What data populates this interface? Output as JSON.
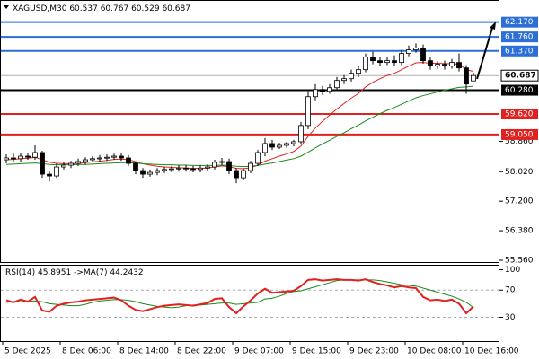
{
  "chart_data": {
    "type": "candlestick",
    "symbol": "XAGUSD,M30",
    "open": [
      58.35,
      58.4,
      58.38,
      58.45,
      58.42,
      58.55,
      57.95,
      57.9,
      58.15,
      58.2,
      58.25,
      58.3,
      58.35,
      58.38,
      58.4,
      58.42,
      58.45,
      58.4,
      58.25,
      58.05,
      57.95,
      58.0,
      58.05,
      58.08,
      58.1,
      58.12,
      58.1,
      58.08,
      58.12,
      58.15,
      58.28,
      58.3,
      58.05,
      57.85,
      58.05,
      58.25,
      58.55,
      58.8,
      58.7,
      58.75,
      58.8,
      58.85,
      59.3,
      60.1,
      60.3,
      60.25,
      60.35,
      60.55,
      60.6,
      60.75,
      60.85,
      61.2,
      61.1,
      61.05,
      61.1,
      61.05,
      61.3,
      61.4,
      61.45,
      61.1,
      60.95,
      61.0,
      60.95,
      61.05,
      60.9,
      60.537
    ],
    "high": [
      58.5,
      58.52,
      58.55,
      58.55,
      58.75,
      58.6,
      58.05,
      58.25,
      58.3,
      58.32,
      58.38,
      58.42,
      58.45,
      58.48,
      58.5,
      58.52,
      58.55,
      58.48,
      58.3,
      58.12,
      58.08,
      58.12,
      58.15,
      58.18,
      58.2,
      58.2,
      58.18,
      58.2,
      58.22,
      58.35,
      58.4,
      58.38,
      58.12,
      58.12,
      58.32,
      58.62,
      58.95,
      58.9,
      58.82,
      58.85,
      58.9,
      59.4,
      60.25,
      60.45,
      60.4,
      60.45,
      60.65,
      60.7,
      60.85,
      60.95,
      61.3,
      61.35,
      61.2,
      61.2,
      61.25,
      61.4,
      61.52,
      61.58,
      61.55,
      61.2,
      61.08,
      61.1,
      61.15,
      61.3,
      60.98,
      60.767
    ],
    "low": [
      58.25,
      58.3,
      58.3,
      58.35,
      58.35,
      57.85,
      57.75,
      57.85,
      58.08,
      58.12,
      58.18,
      58.22,
      58.28,
      58.3,
      58.32,
      58.35,
      58.32,
      58.18,
      57.95,
      57.85,
      57.88,
      57.92,
      57.98,
      58.0,
      58.02,
      58.02,
      58.0,
      58.0,
      58.05,
      58.08,
      58.2,
      57.95,
      57.7,
      57.78,
      57.98,
      58.18,
      58.45,
      58.62,
      58.65,
      58.68,
      58.72,
      58.78,
      59.2,
      60.0,
      60.15,
      60.18,
      60.28,
      60.45,
      60.52,
      60.65,
      60.78,
      61.0,
      60.95,
      60.98,
      60.95,
      60.98,
      61.22,
      61.32,
      61.02,
      60.85,
      60.88,
      60.85,
      60.88,
      60.8,
      60.18,
      60.529
    ],
    "close": [
      58.4,
      58.38,
      58.45,
      58.42,
      58.55,
      57.95,
      57.9,
      58.15,
      58.2,
      58.25,
      58.3,
      58.35,
      58.38,
      58.4,
      58.42,
      58.45,
      58.4,
      58.25,
      58.05,
      57.95,
      58.0,
      58.05,
      58.08,
      58.1,
      58.12,
      58.1,
      58.08,
      58.12,
      58.15,
      58.28,
      58.3,
      58.05,
      57.85,
      58.05,
      58.25,
      58.55,
      58.8,
      58.7,
      58.75,
      58.8,
      58.85,
      59.3,
      60.1,
      60.3,
      60.25,
      60.35,
      60.55,
      60.6,
      60.75,
      60.85,
      61.2,
      61.1,
      61.05,
      61.1,
      61.05,
      61.3,
      61.4,
      61.45,
      61.1,
      60.95,
      61.0,
      60.95,
      61.05,
      60.9,
      60.45,
      60.687
    ],
    "lines": [
      {
        "color": "#e0211f",
        "values": [
          58.35,
          58.36,
          58.38,
          58.39,
          58.42,
          58.35,
          58.28,
          58.25,
          58.24,
          58.24,
          58.25,
          58.27,
          58.29,
          58.31,
          58.33,
          58.36,
          58.37,
          58.35,
          58.3,
          58.24,
          58.2,
          58.17,
          58.15,
          58.14,
          58.13,
          58.12,
          58.11,
          58.11,
          58.12,
          58.15,
          58.18,
          58.16,
          58.11,
          58.1,
          58.13,
          58.2,
          58.31,
          58.38,
          58.45,
          58.51,
          58.58,
          58.73,
          59.0,
          59.23,
          59.42,
          59.59,
          59.76,
          59.91,
          60.06,
          60.19,
          60.37,
          60.5,
          60.6,
          60.69,
          60.75,
          60.85,
          60.95,
          61.04,
          61.05,
          61.03,
          61.03,
          61.02,
          61.02,
          61.0,
          60.85,
          60.8
        ]
      },
      {
        "color": "#1a8a1a",
        "values": [
          58.22,
          58.23,
          58.24,
          58.25,
          58.26,
          58.24,
          58.22,
          58.21,
          58.21,
          58.21,
          58.22,
          58.22,
          58.23,
          58.24,
          58.25,
          58.26,
          58.27,
          58.27,
          58.26,
          58.24,
          58.23,
          58.22,
          58.21,
          58.21,
          58.2,
          58.2,
          58.19,
          58.19,
          58.19,
          58.19,
          58.2,
          58.19,
          58.17,
          58.16,
          58.17,
          58.19,
          58.23,
          58.26,
          58.3,
          58.34,
          58.38,
          58.45,
          58.56,
          58.68,
          58.79,
          58.89,
          59.0,
          59.1,
          59.21,
          59.31,
          59.43,
          59.53,
          59.63,
          59.72,
          59.8,
          59.89,
          59.98,
          60.07,
          60.13,
          60.18,
          60.23,
          60.28,
          60.32,
          60.36,
          60.37,
          60.39
        ]
      }
    ],
    "ylim": [
      55.51,
      62.76
    ],
    "yticks": [
      {
        "value": 58.86,
        "label": "58.860"
      },
      {
        "value": 58.02,
        "label": "58.020"
      },
      {
        "value": 57.2,
        "label": "57.200"
      },
      {
        "value": 56.38,
        "label": "56.380"
      },
      {
        "value": 55.56,
        "label": "55.560"
      }
    ],
    "levels": [
      {
        "value": 62.17,
        "label": "62.170",
        "color": "#2d6fd6"
      },
      {
        "value": 61.76,
        "label": "61.760",
        "color": "#2d6fd6"
      },
      {
        "value": 61.37,
        "label": "61.370",
        "color": "#2d6fd6"
      },
      {
        "value": 60.28,
        "label": "60.280",
        "color": "#000000"
      },
      {
        "value": 59.62,
        "label": "59.620",
        "color": "#e0211f"
      },
      {
        "value": 59.05,
        "label": "59.050",
        "color": "#e0211f"
      }
    ],
    "xticks": [
      {
        "value": 0,
        "label": "5 Dec 2025"
      },
      {
        "value": 8,
        "label": "8 Dec 06:00"
      },
      {
        "value": 16,
        "label": "8 Dec 14:00"
      },
      {
        "value": 24,
        "label": "8 Dec 22:00"
      },
      {
        "value": 32,
        "label": "9 Dec 07:00"
      },
      {
        "value": 40,
        "label": "9 Dec 15:00"
      },
      {
        "value": 48,
        "label": "9 Dec 23:00"
      },
      {
        "value": 56,
        "label": "10 Dec 08:00"
      },
      {
        "value": 64,
        "label": "10 Dec 16:00"
      }
    ],
    "rsi": {
      "label": "RSI(14)",
      "ma_label": "->MA(7)",
      "color": "#e0211f",
      "ma_color": "#1a8a1a",
      "values": [
        55,
        52,
        56,
        53,
        60,
        40,
        38,
        47,
        50,
        52,
        53,
        55,
        56,
        57,
        58,
        59,
        55,
        47,
        41,
        39,
        42,
        45,
        47,
        48,
        49,
        48,
        47,
        49,
        51,
        57,
        58,
        45,
        36,
        46,
        55,
        65,
        72,
        66,
        67,
        68,
        69,
        76,
        85,
        86,
        84,
        85,
        86,
        85,
        85,
        84,
        86,
        82,
        79,
        77,
        74,
        76,
        74,
        73,
        60,
        55,
        56,
        54,
        56,
        50,
        36,
        45.8951
      ],
      "ma_values": [
        52,
        53,
        53,
        54,
        54,
        53,
        50,
        49,
        48,
        47,
        47,
        49,
        52,
        54,
        55,
        56,
        56,
        55,
        53,
        50,
        48,
        46,
        45,
        44,
        45,
        47,
        48,
        48,
        49,
        50,
        51,
        51,
        49,
        50,
        51,
        52,
        57,
        58,
        61,
        65,
        68,
        69,
        72,
        75,
        78,
        81,
        84,
        85,
        85,
        85,
        85,
        85,
        84,
        82,
        80,
        78,
        77,
        76,
        73,
        70,
        67,
        64,
        61,
        57,
        52,
        44.2432
      ],
      "ylim": [
        -5,
        106
      ],
      "yticks": [
        100,
        70,
        30
      ]
    }
  }
}
